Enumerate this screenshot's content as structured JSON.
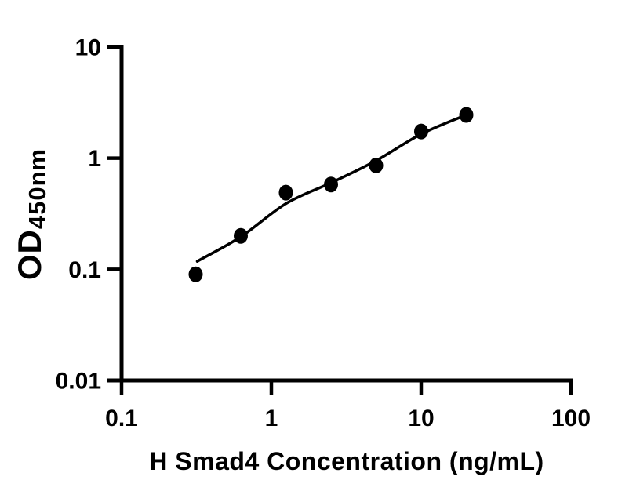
{
  "figure": {
    "background_color": "#ffffff",
    "ink_color": "#000000"
  },
  "chart_data": {
    "type": "scatter",
    "title": "",
    "xlabel": "H Smad4 Concentration (ng/mL)",
    "ylabel": "OD",
    "ylabel_subscript": "450nm",
    "x_scale": "log",
    "y_scale": "log",
    "xlim": [
      0.1,
      100
    ],
    "ylim": [
      0.01,
      10
    ],
    "x_ticks": [
      0.1,
      1,
      10,
      100
    ],
    "x_tick_labels": [
      "0.1",
      "1",
      "10",
      "100"
    ],
    "y_ticks": [
      0.01,
      0.1,
      1,
      10
    ],
    "y_tick_labels": [
      "0.01",
      "0.1",
      "1",
      "10"
    ],
    "grid": false,
    "legend": "none",
    "series": [
      {
        "name": "standard-points",
        "type": "scatter",
        "marker": "filled-circle",
        "color": "#000000",
        "x": [
          0.3125,
          0.625,
          1.25,
          2.5,
          5,
          10,
          20
        ],
        "y": [
          0.09,
          0.2,
          0.49,
          0.58,
          0.86,
          1.74,
          2.45
        ]
      },
      {
        "name": "fit-curve",
        "type": "line",
        "color": "#000000",
        "x": [
          0.32,
          0.625,
          1.25,
          2.5,
          5,
          10,
          20
        ],
        "y": [
          0.118,
          0.196,
          0.39,
          0.6,
          0.95,
          1.65,
          2.45
        ]
      }
    ]
  }
}
